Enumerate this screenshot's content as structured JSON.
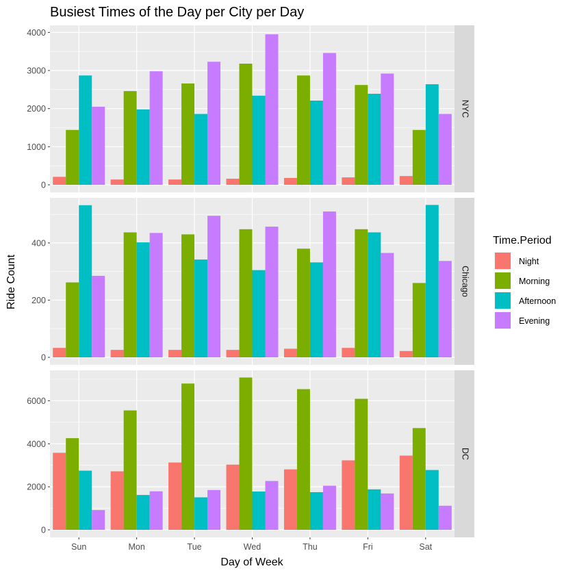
{
  "chart_data": {
    "type": "bar",
    "title": "Busiest Times of the Day per City per Day",
    "xlabel": "Day of Week",
    "ylabel": "Ride Count",
    "categories": [
      "Sun",
      "Mon",
      "Tue",
      "Wed",
      "Thu",
      "Fri",
      "Sat"
    ],
    "legend": {
      "title": "Time.Period",
      "placement": "right",
      "entries": [
        "Night",
        "Morning",
        "Afternoon",
        "Evening"
      ]
    },
    "colors": {
      "Night": "#F8766D",
      "Morning": "#7CAE00",
      "Afternoon": "#00BFC4",
      "Evening": "#C77CFF",
      "panel_background": "#EBEBEB",
      "gridline": "#FFFFFF",
      "strip_background": "#D9D9D9"
    },
    "grid": true,
    "facets": [
      {
        "name": "NYC",
        "ylim": [
          0,
          4150
        ],
        "yticks": [
          0,
          1000,
          2000,
          3000,
          4000
        ],
        "ytick_labels": [
          "0",
          "1000",
          "2000",
          "3000",
          "4000"
        ],
        "series": [
          {
            "name": "Night",
            "values": [
              210,
              140,
              140,
              160,
              180,
              195,
              230
            ]
          },
          {
            "name": "Morning",
            "values": [
              1440,
              2460,
              2660,
              3180,
              2870,
              2620,
              1440
            ]
          },
          {
            "name": "Afternoon",
            "values": [
              2870,
              1980,
              1860,
              2340,
              2210,
              2390,
              2640
            ]
          },
          {
            "name": "Evening",
            "values": [
              2050,
              2980,
              3230,
              3950,
              3460,
              2920,
              1860
            ]
          }
        ]
      },
      {
        "name": "Chicago",
        "ylim": [
          0,
          553
        ],
        "yticks": [
          0,
          200,
          400
        ],
        "ytick_labels": [
          "0",
          "200",
          "400"
        ],
        "series": [
          {
            "name": "Night",
            "values": [
              33,
              26,
              26,
              26,
              30,
              33,
              22
            ]
          },
          {
            "name": "Morning",
            "values": [
              262,
              437,
              430,
              448,
              380,
              448,
              260
            ]
          },
          {
            "name": "Afternoon",
            "values": [
              532,
              402,
              342,
              305,
              332,
              437,
              533
            ]
          },
          {
            "name": "Evening",
            "values": [
              285,
              435,
              495,
              457,
              510,
              365,
              337
            ]
          }
        ]
      },
      {
        "name": "DC",
        "ylim": [
          0,
          7350
        ],
        "yticks": [
          0,
          2000,
          4000,
          6000
        ],
        "ytick_labels": [
          "0",
          "2000",
          "4000",
          "6000"
        ],
        "series": [
          {
            "name": "Night",
            "values": [
              3580,
              2720,
              3130,
              3030,
              2810,
              3230,
              3450
            ]
          },
          {
            "name": "Morning",
            "values": [
              4260,
              5550,
              6800,
              7080,
              6540,
              6090,
              4730
            ]
          },
          {
            "name": "Afternoon",
            "values": [
              2750,
              1620,
              1510,
              1780,
              1750,
              1880,
              2780
            ]
          },
          {
            "name": "Evening",
            "values": [
              920,
              1790,
              1850,
              2270,
              2050,
              1690,
              1120
            ]
          }
        ]
      }
    ]
  }
}
